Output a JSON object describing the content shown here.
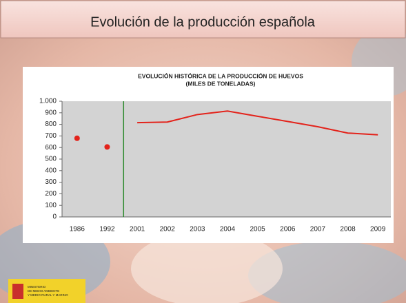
{
  "slide_title": "Evolución de la producción española",
  "logo_text": [
    "MINISTERIO",
    "DE MEDIO AMBIENTE",
    "Y MEDIO RURAL Y MARINO"
  ],
  "chart_data": {
    "type": "line",
    "title": [
      "EVOLUCIÓN HISTÓRICA DE LA PRODUCCIÓN DE HUEVOS",
      "(MILES DE TONELADAS)"
    ],
    "categories": [
      "1986",
      "1992",
      "2001",
      "2002",
      "2003",
      "2004",
      "2005",
      "2006",
      "2007",
      "2008",
      "2009"
    ],
    "series": [
      {
        "color": "#e3231b",
        "style": "marker",
        "values": [
          680,
          605,
          null,
          null,
          null,
          null,
          null,
          null,
          null,
          null,
          null
        ]
      },
      {
        "color": "#e3231b",
        "style": "line",
        "values": [
          null,
          null,
          815,
          820,
          885,
          915,
          870,
          825,
          780,
          725,
          710
        ]
      }
    ],
    "divider_color": "#2e8b2e",
    "ylim": [
      0,
      1000
    ],
    "yticks": [
      0,
      100,
      200,
      300,
      400,
      500,
      600,
      700,
      800,
      900,
      {
        "value": 1000,
        "label": "1.000"
      }
    ],
    "plot_background": "#d3d3d3"
  }
}
